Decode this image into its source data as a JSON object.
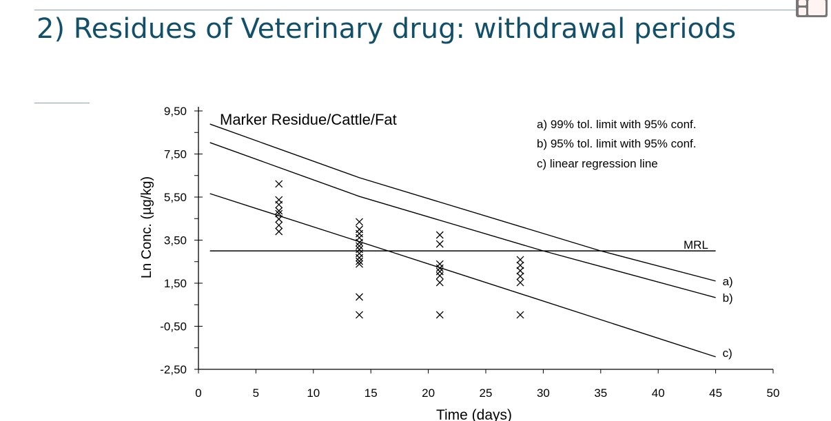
{
  "slide": {
    "title": "2) Residues of Veterinary drug: withdrawal periods"
  },
  "chart_data": {
    "type": "scatter",
    "title": "Marker Residue/Cattle/Fat",
    "xlabel": "Time (days)",
    "ylabel": "Ln Conc. (µg/kg)",
    "xlim": [
      0,
      50
    ],
    "ylim": [
      -2.5,
      9.5
    ],
    "xticks": [
      "0",
      "5",
      "10",
      "15",
      "20",
      "25",
      "30",
      "35",
      "40",
      "45",
      "50"
    ],
    "yticks": [
      "9,50",
      "7,50",
      "5,50",
      "3,50",
      "1,50",
      "-0,50",
      "-2,50"
    ],
    "grid": false,
    "legend": {
      "placement": "top-right",
      "entries": [
        "a) 99% tol. limit with 95% conf.",
        "b) 95% tol. limit with 95% conf.",
        "c) linear regression line"
      ]
    },
    "points": [
      [
        7,
        6.11
      ],
      [
        7,
        5.37
      ],
      [
        7,
        5.15
      ],
      [
        7,
        4.86
      ],
      [
        7,
        4.73
      ],
      [
        7,
        4.48
      ],
      [
        7,
        4.19
      ],
      [
        7,
        3.9
      ],
      [
        14,
        4.35
      ],
      [
        14,
        4.0
      ],
      [
        14,
        3.8
      ],
      [
        14,
        3.61
      ],
      [
        14,
        3.39
      ],
      [
        14,
        3.23
      ],
      [
        14,
        3.07
      ],
      [
        14,
        2.88
      ],
      [
        14,
        2.68
      ],
      [
        14,
        2.52
      ],
      [
        14,
        2.39
      ],
      [
        14,
        0.86
      ],
      [
        14,
        0.03
      ],
      [
        21,
        3.74
      ],
      [
        21,
        3.32
      ],
      [
        21,
        2.39
      ],
      [
        21,
        2.2
      ],
      [
        21,
        2.04
      ],
      [
        21,
        1.85
      ],
      [
        21,
        1.53
      ],
      [
        21,
        0.03
      ],
      [
        28,
        2.59
      ],
      [
        28,
        2.33
      ],
      [
        28,
        2.08
      ],
      [
        28,
        1.82
      ],
      [
        28,
        1.53
      ],
      [
        28,
        0.03
      ]
    ],
    "lines": [
      {
        "name": "a)",
        "points": [
          [
            1,
            8.89
          ],
          [
            14,
            6.4
          ],
          [
            35,
            3.0
          ],
          [
            45,
            1.6
          ]
        ]
      },
      {
        "name": "b)",
        "points": [
          [
            1,
            8.03
          ],
          [
            14,
            5.53
          ],
          [
            30,
            3.0
          ],
          [
            45,
            0.83
          ]
        ]
      },
      {
        "name": "c)",
        "points": [
          [
            1,
            5.66
          ],
          [
            16.5,
            3.0
          ],
          [
            45,
            -1.92
          ]
        ]
      }
    ],
    "mrl": {
      "label": "MRL",
      "value": 3.0,
      "x_range": [
        1,
        45
      ]
    }
  }
}
